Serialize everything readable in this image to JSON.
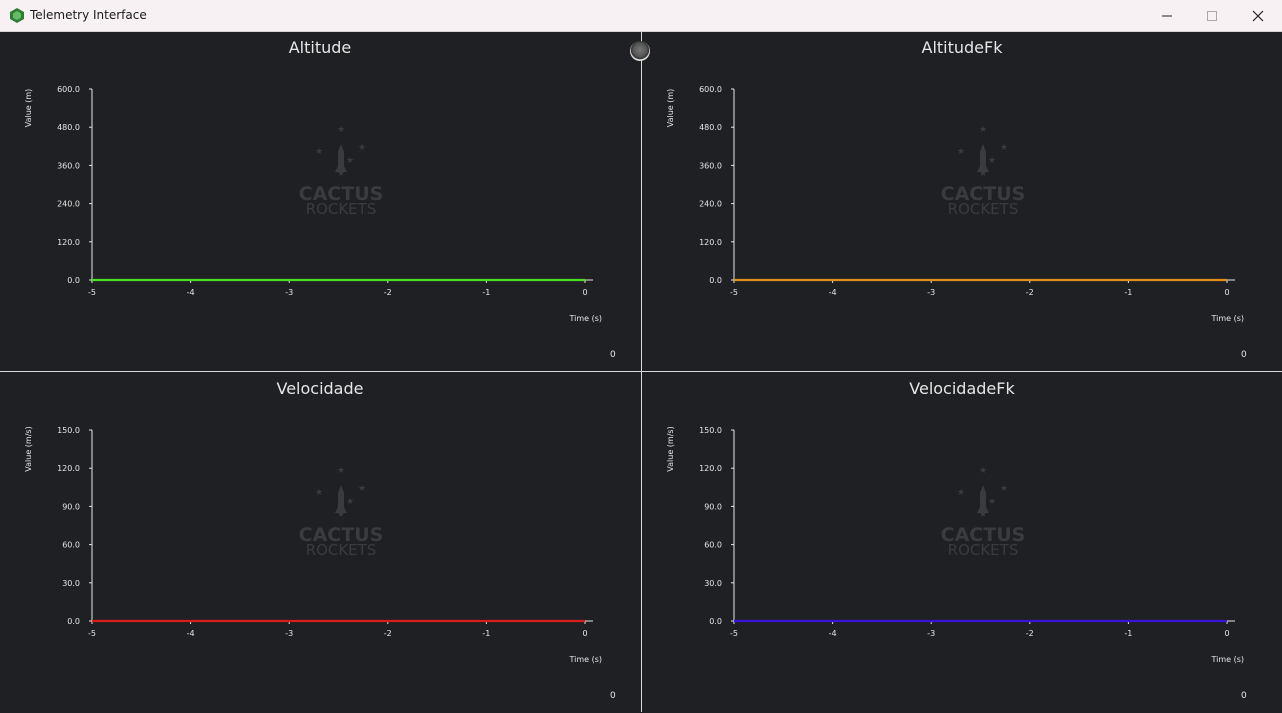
{
  "window": {
    "title": "Telemetry Interface",
    "minimize_icon": "minimize-icon",
    "maximize_icon": "maximize-icon",
    "close_icon": "close-icon"
  },
  "watermark": {
    "line1": "CACTUS",
    "line2": "ROCKETS"
  },
  "panels": [
    {
      "title": "Altitude",
      "ylabel": "Value (m)",
      "xlabel": "Time (s)",
      "counter": "0",
      "color": "#4ddc1f"
    },
    {
      "title": "AltitudeFk",
      "ylabel": "Value (m)",
      "xlabel": "Time (s)",
      "counter": "0",
      "color": "#e0901a"
    },
    {
      "title": "Velocidade",
      "ylabel": "Value (m/s)",
      "xlabel": "Time (s)",
      "counter": "0",
      "color": "#d81b1b"
    },
    {
      "title": "VelocidadeFk",
      "ylabel": "Value (m/s)",
      "xlabel": "Time (s)",
      "counter": "0",
      "color": "#3a14d6"
    }
  ],
  "chart_data": [
    {
      "type": "line",
      "title": "Altitude",
      "xlabel": "Time (s)",
      "ylabel": "Value (m)",
      "x_ticks": [
        "-5",
        "-4",
        "-3",
        "-2",
        "-1",
        "0"
      ],
      "y_ticks": [
        "0.0",
        "120.0",
        "240.0",
        "360.0",
        "480.0",
        "600.0"
      ],
      "xlim": [
        -5,
        0
      ],
      "ylim": [
        0,
        600
      ],
      "series": [
        {
          "x": [
            -5,
            0
          ],
          "values": [
            0,
            0
          ]
        }
      ]
    },
    {
      "type": "line",
      "title": "AltitudeFk",
      "xlabel": "Time (s)",
      "ylabel": "Value (m)",
      "x_ticks": [
        "-5",
        "-4",
        "-3",
        "-2",
        "-1",
        "0"
      ],
      "y_ticks": [
        "0.0",
        "120.0",
        "240.0",
        "360.0",
        "480.0",
        "600.0"
      ],
      "xlim": [
        -5,
        0
      ],
      "ylim": [
        0,
        600
      ],
      "series": [
        {
          "x": [
            -5,
            0
          ],
          "values": [
            0,
            0
          ]
        }
      ]
    },
    {
      "type": "line",
      "title": "Velocidade",
      "xlabel": "Time (s)",
      "ylabel": "Value (m/s)",
      "x_ticks": [
        "-5",
        "-4",
        "-3",
        "-2",
        "-1",
        "0"
      ],
      "y_ticks": [
        "0.0",
        "30.0",
        "60.0",
        "90.0",
        "120.0",
        "150.0"
      ],
      "xlim": [
        -5,
        0
      ],
      "ylim": [
        0,
        150
      ],
      "series": [
        {
          "x": [
            -5,
            0
          ],
          "values": [
            0,
            0
          ]
        }
      ]
    },
    {
      "type": "line",
      "title": "VelocidadeFk",
      "xlabel": "Time (s)",
      "ylabel": "Value (m/s)",
      "x_ticks": [
        "-5",
        "-4",
        "-3",
        "-2",
        "-1",
        "0"
      ],
      "y_ticks": [
        "0.0",
        "30.0",
        "60.0",
        "90.0",
        "120.0",
        "150.0"
      ],
      "xlim": [
        -5,
        0
      ],
      "ylim": [
        0,
        150
      ],
      "series": [
        {
          "x": [
            -5,
            0
          ],
          "values": [
            0,
            0
          ]
        }
      ]
    }
  ]
}
